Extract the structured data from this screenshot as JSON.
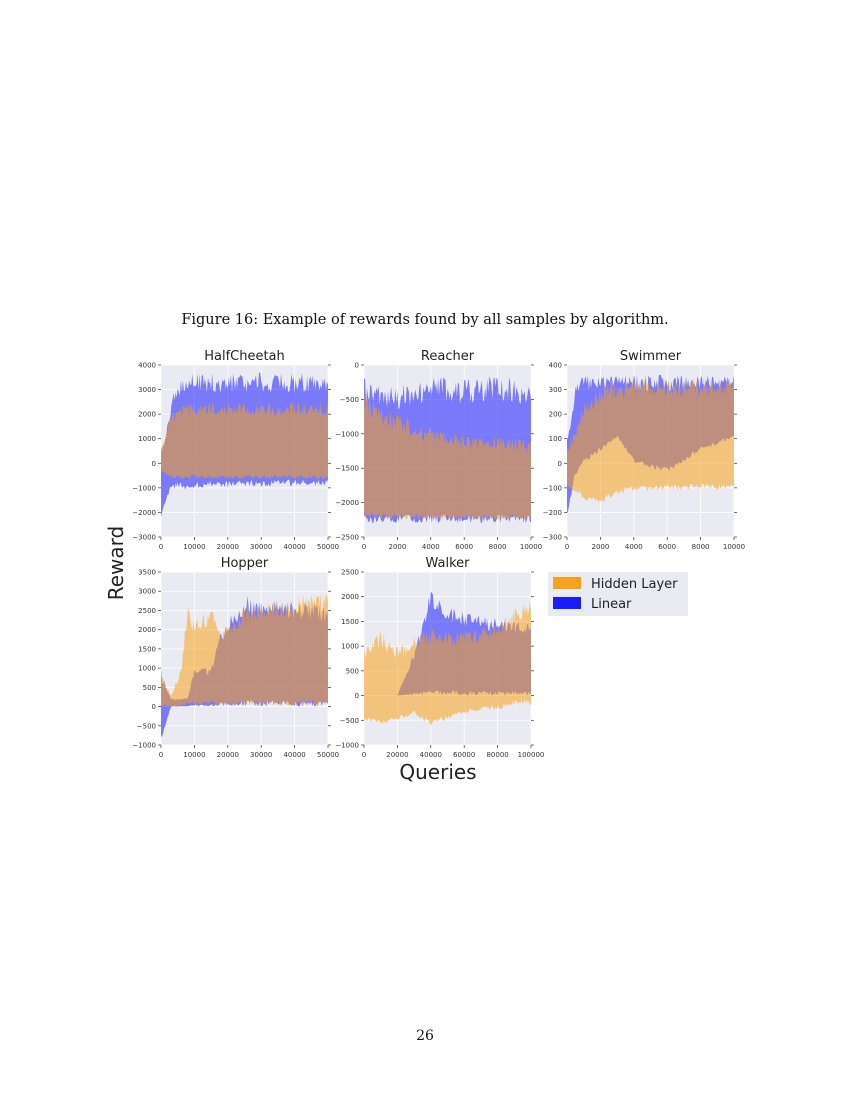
{
  "caption": "Figure 16: Example of rewards found by all samples by algorithm.",
  "page_number": "26",
  "chart_data": {
    "type": "area",
    "ylabel": "Reward",
    "xlabel": "Queries",
    "legend": {
      "placement": "right",
      "entries": [
        "Hidden Layer",
        "Linear"
      ]
    },
    "colors": {
      "hidden": "#f7a21b",
      "linear": "#1b1bff",
      "overlap": "#b07060",
      "bg": "#eaeaf2",
      "grid": "#ffffff"
    },
    "grid": true,
    "panels": [
      {
        "title": "HalfCheetah",
        "xlim": [
          0,
          50000
        ],
        "ylim": [
          -3000,
          4000
        ],
        "xticks": [
          "0",
          "10000",
          "20000",
          "30000",
          "40000",
          "50000"
        ],
        "yticks": [
          "−3000",
          "−2000",
          "−1000",
          "0",
          "1000",
          "2000",
          "3000",
          "4000"
        ],
        "ytick_values": [
          -3000,
          -2000,
          -1000,
          0,
          1000,
          2000,
          3000,
          4000
        ],
        "x": [
          0,
          1500,
          3000,
          5000,
          8000,
          12000,
          20000,
          30000,
          40000,
          50000
        ],
        "series": [
          {
            "name": "Hidden Layer",
            "max": [
              600,
              1300,
              2000,
              2300,
              2500,
              2500,
              2500,
              2500,
              2500,
              2500
            ],
            "min": [
              -300,
              -500,
              -600,
              -650,
              -650,
              -650,
              -650,
              -650,
              -650,
              -650
            ]
          },
          {
            "name": "Linear",
            "max": [
              600,
              1500,
              2600,
              3300,
              3700,
              3700,
              3700,
              3700,
              3700,
              3700
            ],
            "min": [
              -2300,
              -1500,
              -1100,
              -1000,
              -1100,
              -1000,
              -1000,
              -950,
              -950,
              -900
            ]
          }
        ]
      },
      {
        "title": "Reacher",
        "xlim": [
          0,
          10000
        ],
        "ylim": [
          -2500,
          0
        ],
        "xticks": [
          "0",
          "2000",
          "4000",
          "6000",
          "8000",
          "10000"
        ],
        "yticks": [
          "−2500",
          "−2000",
          "−1500",
          "−1000",
          "−500",
          "0"
        ],
        "ytick_values": [
          -2500,
          -2000,
          -1500,
          -1000,
          -500,
          0
        ],
        "x": [
          0,
          2000,
          4000,
          6000,
          8000,
          10000
        ],
        "series": [
          {
            "name": "Hidden Layer",
            "max": [
              -400,
              -700,
              -900,
              -1000,
              -1000,
              -1100
            ],
            "min": [
              -2250,
              -2250,
              -2250,
              -2250,
              -2250,
              -2250
            ]
          },
          {
            "name": "Linear",
            "max": [
              -200,
              -300,
              -150,
              -200,
              -150,
              -200
            ],
            "min": [
              -2300,
              -2300,
              -2300,
              -2300,
              -2300,
              -2300
            ]
          }
        ]
      },
      {
        "title": "Swimmer",
        "xlim": [
          0,
          10000
        ],
        "ylim": [
          -300,
          400
        ],
        "xticks": [
          "0",
          "2000",
          "4000",
          "6000",
          "8000",
          "10000"
        ],
        "yticks": [
          "−300",
          "−200",
          "−100",
          "0",
          "100",
          "200",
          "300",
          "400"
        ],
        "ytick_values": [
          -300,
          -200,
          -100,
          0,
          100,
          200,
          300,
          400
        ],
        "x": [
          0,
          500,
          1000,
          2000,
          3000,
          4000,
          6000,
          8000,
          10000
        ],
        "series": [
          {
            "name": "Hidden Layer",
            "max": [
              50,
              150,
              250,
              320,
              350,
              350,
              350,
              350,
              350
            ],
            "min": [
              -100,
              -120,
              -150,
              -170,
              -130,
              -120,
              -110,
              -110,
              -110
            ]
          },
          {
            "name": "Linear",
            "max": [
              100,
              340,
              355,
              360,
              360,
              360,
              360,
              360,
              360
            ],
            "min": [
              -220,
              -50,
              0,
              50,
              100,
              0,
              -40,
              50,
              100
            ]
          }
        ]
      },
      {
        "title": "Hopper",
        "xlim": [
          0,
          50000
        ],
        "ylim": [
          -1000,
          3500
        ],
        "xticks": [
          "0",
          "10000",
          "20000",
          "30000",
          "40000",
          "50000"
        ],
        "yticks": [
          "−1000",
          "−500",
          "0",
          "500",
          "1000",
          "1500",
          "2000",
          "2500",
          "3000",
          "3500"
        ],
        "ytick_values": [
          -1000,
          -500,
          0,
          500,
          1000,
          1500,
          2000,
          2500,
          3000,
          3500
        ],
        "x": [
          0,
          3000,
          6000,
          8000,
          10000,
          15000,
          18000,
          25000,
          35000,
          45000,
          50000
        ],
        "series": [
          {
            "name": "Hidden Layer",
            "max": [
              900,
              300,
              1000,
              2700,
              2200,
              2600,
              2000,
              2600,
              2800,
              3000,
              3000
            ],
            "min": [
              0,
              0,
              0,
              0,
              0,
              0,
              0,
              0,
              0,
              0,
              0
            ]
          },
          {
            "name": "Linear",
            "max": [
              1000,
              200,
              200,
              250,
              1000,
              1000,
              2000,
              2900,
              2800,
              2700,
              2600
            ],
            "min": [
              -900,
              0,
              0,
              0,
              0,
              0,
              0,
              0,
              0,
              0,
              0
            ]
          }
        ]
      },
      {
        "title": "Walker",
        "xlim": [
          0,
          100000
        ],
        "ylim": [
          -1000,
          2500
        ],
        "xticks": [
          "0",
          "20000",
          "40000",
          "60000",
          "80000",
          "100000"
        ],
        "yticks": [
          "−1000",
          "−500",
          "0",
          "500",
          "1000",
          "1500",
          "2000",
          "2500"
        ],
        "ytick_values": [
          -1000,
          -500,
          0,
          500,
          1000,
          1500,
          2000,
          2500
        ],
        "x": [
          0,
          10000,
          20000,
          30000,
          40000,
          50000,
          60000,
          70000,
          80000,
          90000,
          100000
        ],
        "series": [
          {
            "name": "Hidden Layer",
            "max": [
              1000,
              1300,
              1000,
              1200,
              1400,
              1300,
              1300,
              1400,
              1500,
              1800,
              2000
            ],
            "min": [
              -500,
              -600,
              -500,
              -400,
              -600,
              -500,
              -400,
              -300,
              -300,
              -200,
              -200
            ]
          },
          {
            "name": "Linear",
            "max": [
              0,
              0,
              0,
              900,
              2200,
              1800,
              1700,
              1600,
              1600,
              1500,
              1500
            ],
            "min": [
              0,
              0,
              0,
              0,
              0,
              0,
              0,
              0,
              0,
              0,
              0
            ]
          }
        ]
      }
    ]
  }
}
